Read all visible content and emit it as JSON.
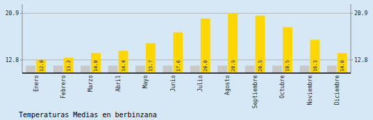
{
  "chart_data": {
    "type": "bar",
    "title": "Temperaturas Medias en berbinzana",
    "categories": [
      "Enero",
      "Febrero",
      "Marzo",
      "Abril",
      "Mayo",
      "Junio",
      "Julio",
      "Agosto",
      "Septiembre",
      "Octubre",
      "Noviembre",
      "Diciembre"
    ],
    "series": [
      {
        "color": "#C8C8C8",
        "values": [
          11.8,
          11.8,
          11.8,
          11.8,
          11.8,
          11.8,
          11.8,
          11.8,
          11.8,
          11.8,
          11.8,
          11.8
        ]
      },
      {
        "color": "#FFD700",
        "values": [
          12.8,
          13.2,
          14.0,
          14.4,
          15.7,
          17.6,
          20.0,
          20.9,
          20.5,
          18.5,
          16.3,
          14.0
        ],
        "value_labels": [
          "12.8",
          "13.2",
          "14.0",
          "14.4",
          "15.7",
          "17.6",
          "20.0",
          "20.9",
          "20.5",
          "18.5",
          "16.3",
          "14.0"
        ],
        "data_labels": true
      }
    ],
    "ylim": [
      10.5,
      22.5
    ],
    "yticks": [
      12.8,
      20.9
    ],
    "y2lim": [
      10.5,
      22.5
    ],
    "y2ticks": [
      12.8,
      20.9
    ],
    "grid": true
  }
}
